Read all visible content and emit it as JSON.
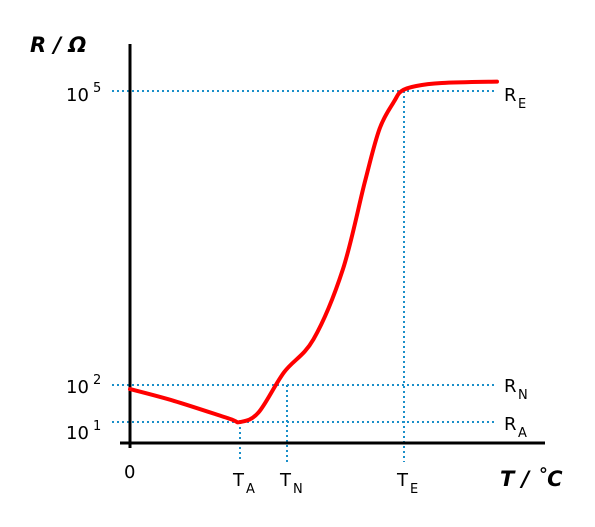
{
  "chart_data": {
    "type": "line",
    "title": "",
    "ylabel": "R / Ω",
    "xlabel": "T / ˚C",
    "y_scale": "log",
    "grid": false,
    "colors": {
      "curve": "#ff0000",
      "reference_lines": "#1a8fc9",
      "axes": "#000000"
    },
    "y_ticks": [
      {
        "base": "10",
        "exp": "1",
        "value": 10
      },
      {
        "base": "10",
        "exp": "2",
        "value": 100
      },
      {
        "base": "10",
        "exp": "5",
        "value": 100000
      }
    ],
    "x_ticks": [
      {
        "label": "0",
        "sub": ""
      },
      {
        "label": "T",
        "sub": "A"
      },
      {
        "label": "T",
        "sub": "N"
      },
      {
        "label": "T",
        "sub": "E"
      }
    ],
    "reference_labels": [
      {
        "label": "R",
        "sub": "A"
      },
      {
        "label": "R",
        "sub": "N"
      },
      {
        "label": "R",
        "sub": "E"
      }
    ],
    "series": [
      {
        "x": [
          0,
          0.12,
          0.27,
          0.3,
          0.35,
          0.42,
          0.5,
          0.58,
          0.64,
          0.68,
          0.72,
          0.74,
          0.78,
          0.85,
          1
        ],
        "y": [
          25,
          18,
          11,
          10,
          13,
          40,
          100,
          700,
          8000,
          35000,
          75000,
          100000,
          115000,
          125000,
          130000
        ]
      }
    ]
  }
}
